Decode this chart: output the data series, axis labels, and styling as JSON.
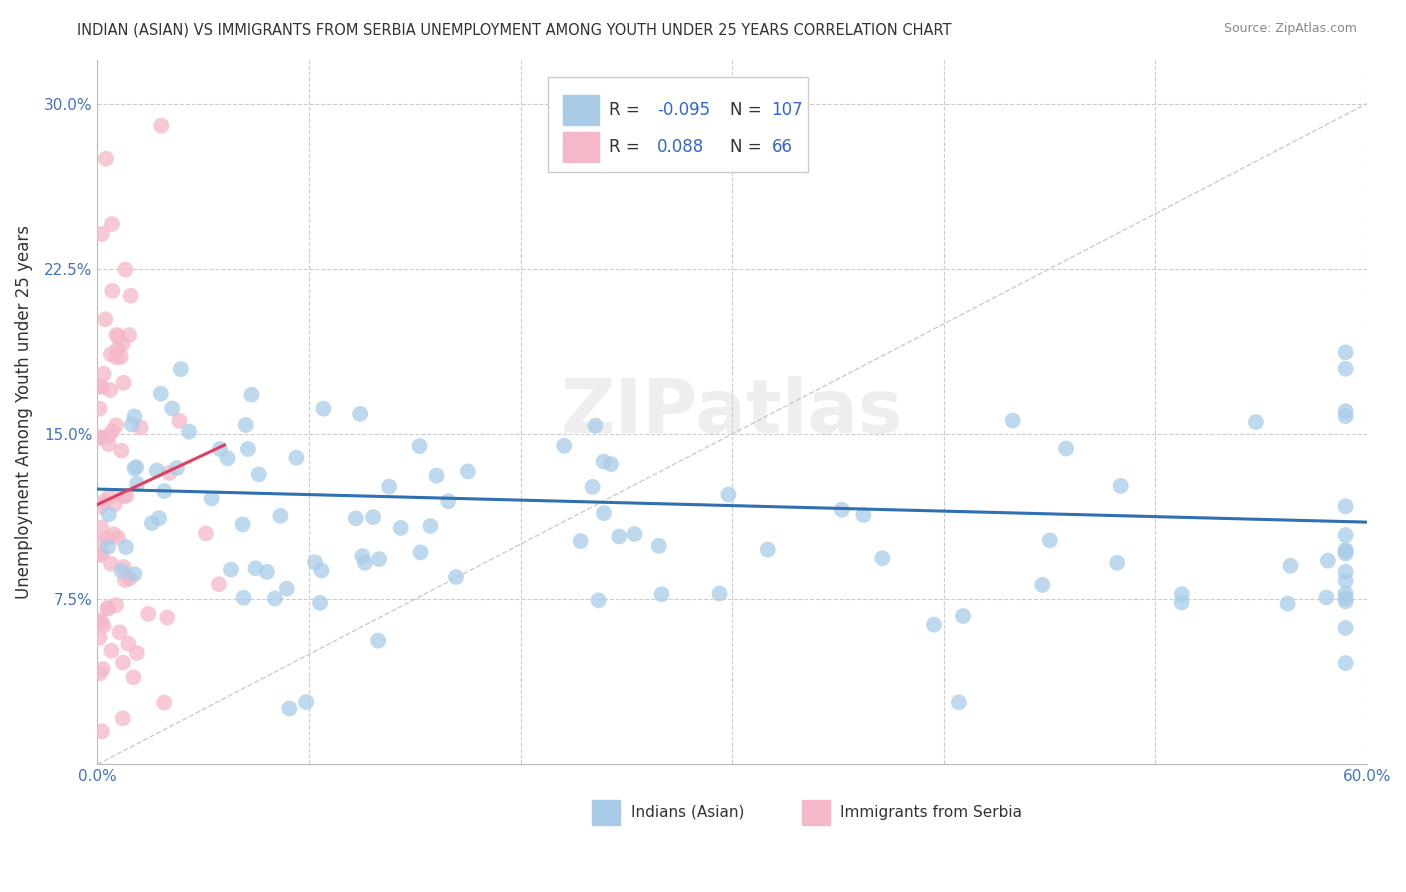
{
  "title": "INDIAN (ASIAN) VS IMMIGRANTS FROM SERBIA UNEMPLOYMENT AMONG YOUTH UNDER 25 YEARS CORRELATION CHART",
  "source": "Source: ZipAtlas.com",
  "ylabel": "Unemployment Among Youth under 25 years",
  "xlim": [
    0.0,
    0.6
  ],
  "ylim": [
    0.0,
    0.32
  ],
  "xticks": [
    0.0,
    0.1,
    0.2,
    0.3,
    0.4,
    0.5,
    0.6
  ],
  "yticks": [
    0.0,
    0.075,
    0.15,
    0.225,
    0.3
  ],
  "xtick_labels": [
    "0.0%",
    "",
    "",
    "",
    "",
    "",
    "60.0%"
  ],
  "ytick_labels": [
    "",
    "7.5%",
    "15.0%",
    "22.5%",
    "30.0%"
  ],
  "series1_color": "#a8cce8",
  "series2_color": "#f4b8c8",
  "trend1_color": "#3070b0",
  "trend2_color": "#e04060",
  "watermark": "ZIPatlas",
  "watermark_color": "#c8c8c8",
  "series1_label": "Indians (Asian)",
  "series2_label": "Immigrants from Serbia",
  "series1_R": -0.095,
  "series1_N": 107,
  "series2_R": 0.088,
  "series2_N": 66,
  "legend_label_color": "#333333",
  "legend_value_color": "#3366cc",
  "background_color": "#ffffff",
  "grid_color": "#cccccc",
  "tick_color": "#4472c4",
  "ylabel_color": "#333333"
}
